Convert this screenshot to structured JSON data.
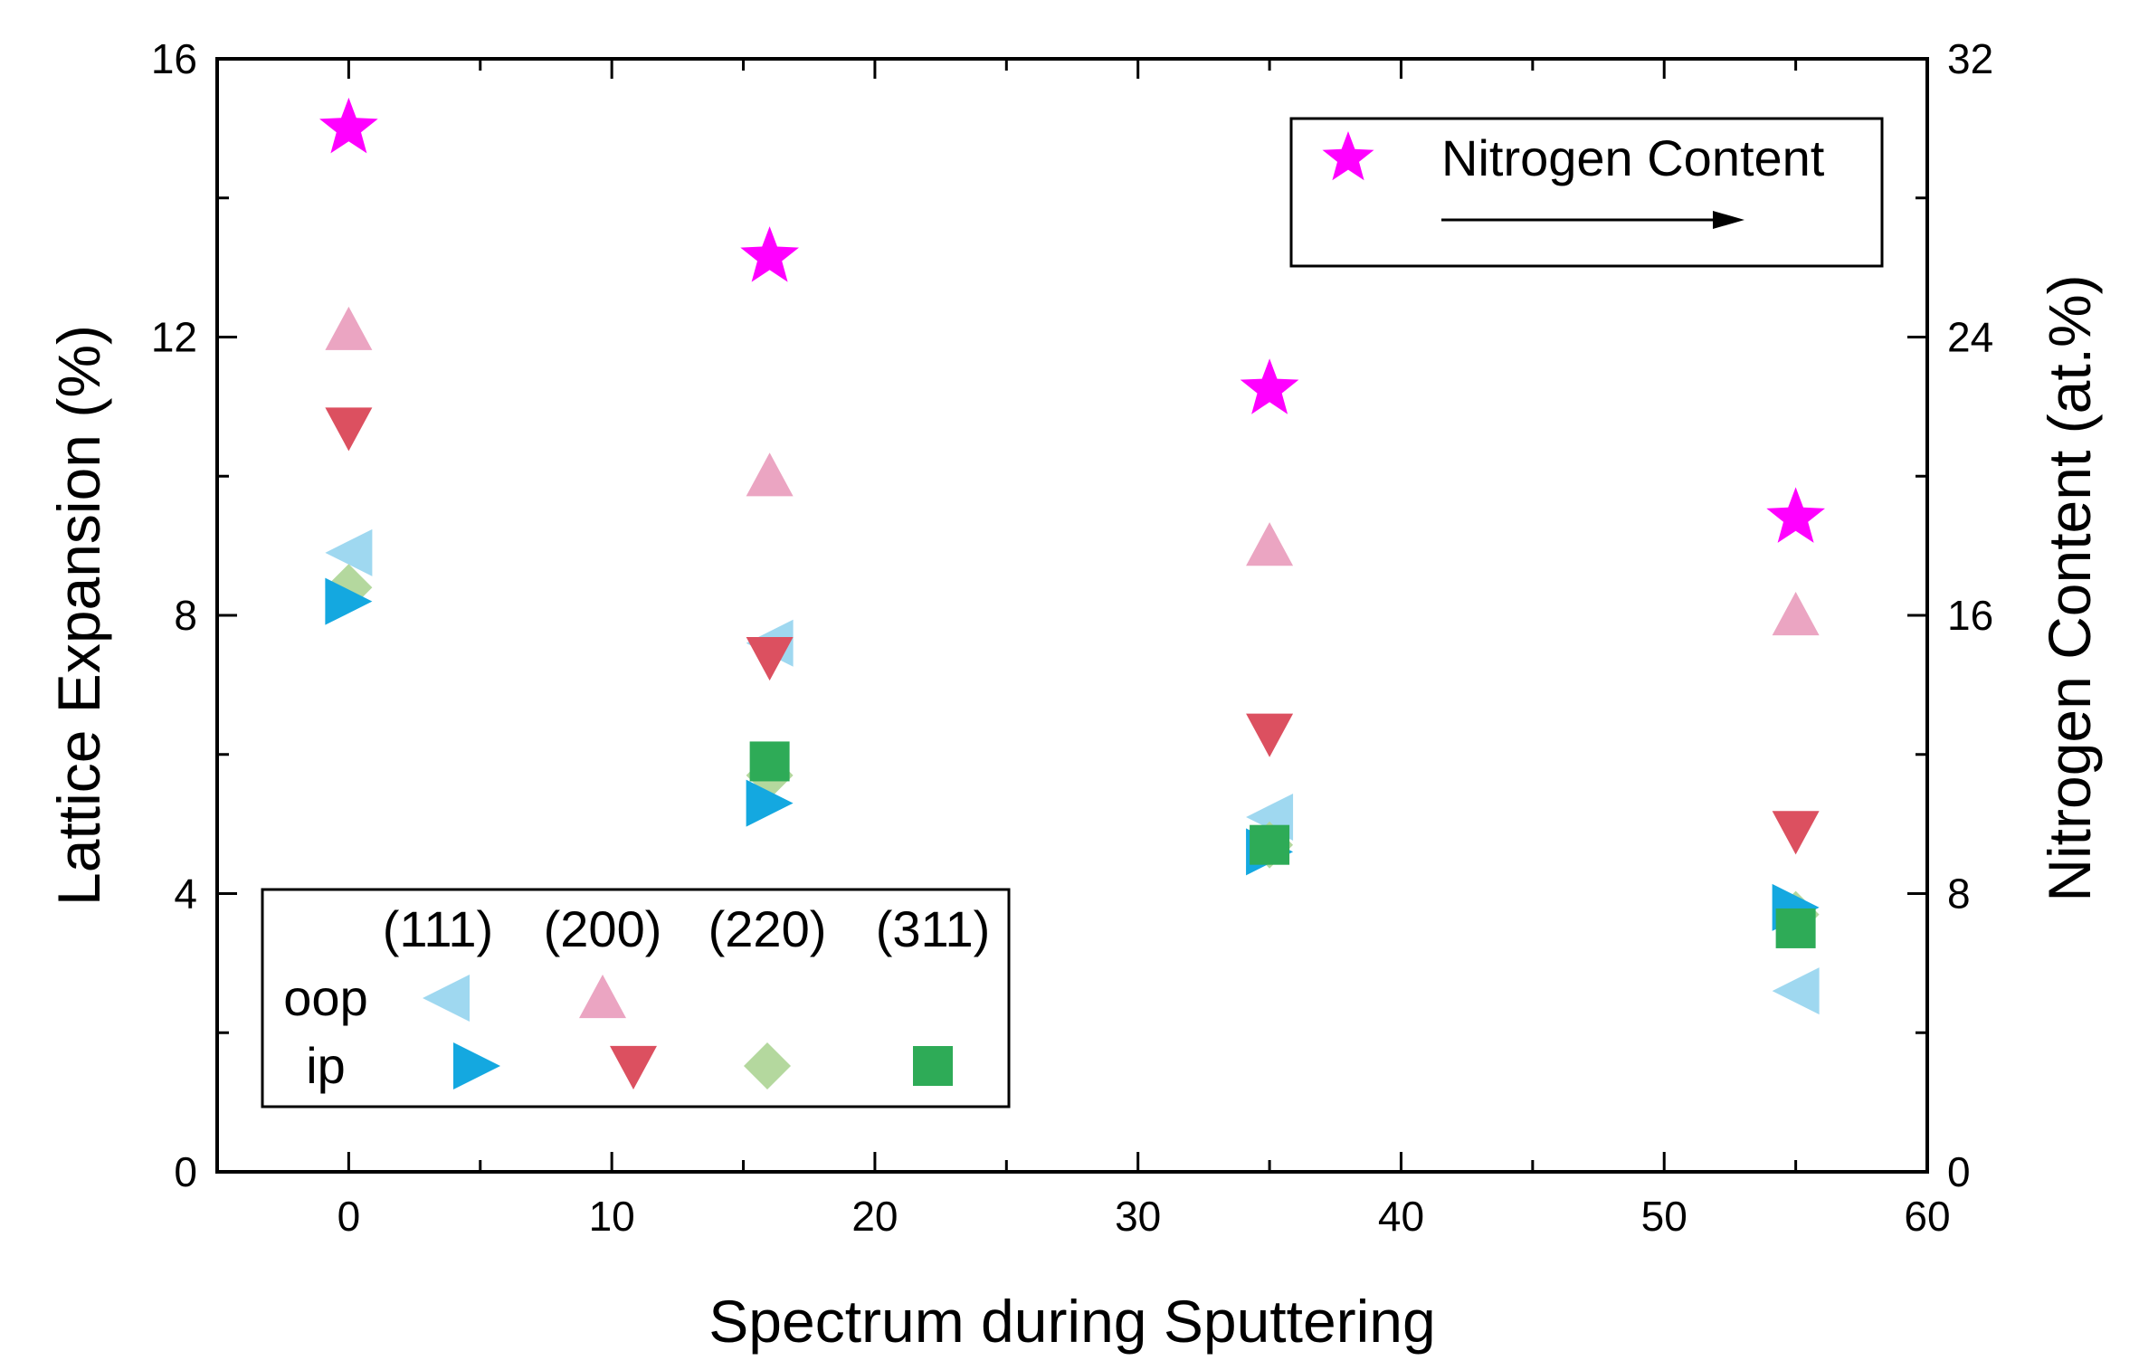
{
  "chart_data": {
    "type": "scatter",
    "title": "",
    "xlabel": "Spectrum during Sputtering",
    "ylabel": "Lattice Expansion (%)",
    "y2label": "Nitrogen Content (at.%)",
    "xlim": [
      -5,
      60
    ],
    "ylim": [
      0,
      16
    ],
    "y2lim": [
      0,
      32
    ],
    "xticks": [
      "0",
      "10",
      "20",
      "30",
      "40",
      "50",
      "60"
    ],
    "yticks": [
      "0",
      "4",
      "8",
      "12",
      "16"
    ],
    "y2ticks": [
      "0",
      "8",
      "16",
      "24",
      "32"
    ],
    "x": [
      0,
      16,
      35,
      55
    ],
    "series": [
      {
        "name": "Nitrogen Content",
        "axis": "right",
        "marker": "star",
        "color": "#ff00ff",
        "values": [
          30.0,
          26.3,
          22.5,
          18.8
        ]
      },
      {
        "name": "oop (111)",
        "axis": "left",
        "marker": "triangle-left",
        "color": "#9fd8f0",
        "values": [
          8.9,
          7.6,
          5.1,
          2.6
        ]
      },
      {
        "name": "oop (200)",
        "axis": "left",
        "marker": "triangle-up",
        "color": "#eba5c2",
        "values": [
          12.1,
          10.0,
          9.0,
          8.0
        ]
      },
      {
        "name": "ip (111)",
        "axis": "left",
        "marker": "triangle-right",
        "color": "#14a8e0",
        "values": [
          8.2,
          5.3,
          4.6,
          3.8
        ]
      },
      {
        "name": "ip (200)",
        "axis": "left",
        "marker": "triangle-down",
        "color": "#dc5060",
        "values": [
          10.7,
          7.4,
          6.3,
          4.9
        ]
      },
      {
        "name": "ip (220)",
        "axis": "left",
        "marker": "diamond",
        "color": "#b4d89e",
        "values": [
          8.4,
          5.7,
          4.7,
          3.7
        ]
      },
      {
        "name": "ip (311)",
        "axis": "left",
        "marker": "square",
        "color": "#2eab57",
        "values": [
          null,
          5.9,
          4.7,
          3.5
        ]
      }
    ],
    "legend_top": {
      "position": "top-right",
      "label": "Nitrogen Content"
    },
    "legend_bottom": {
      "position": "bottom-left",
      "columns": [
        "(111)",
        "(200)",
        "(220)",
        "(311)"
      ],
      "rows": [
        "oop",
        "ip"
      ]
    }
  }
}
